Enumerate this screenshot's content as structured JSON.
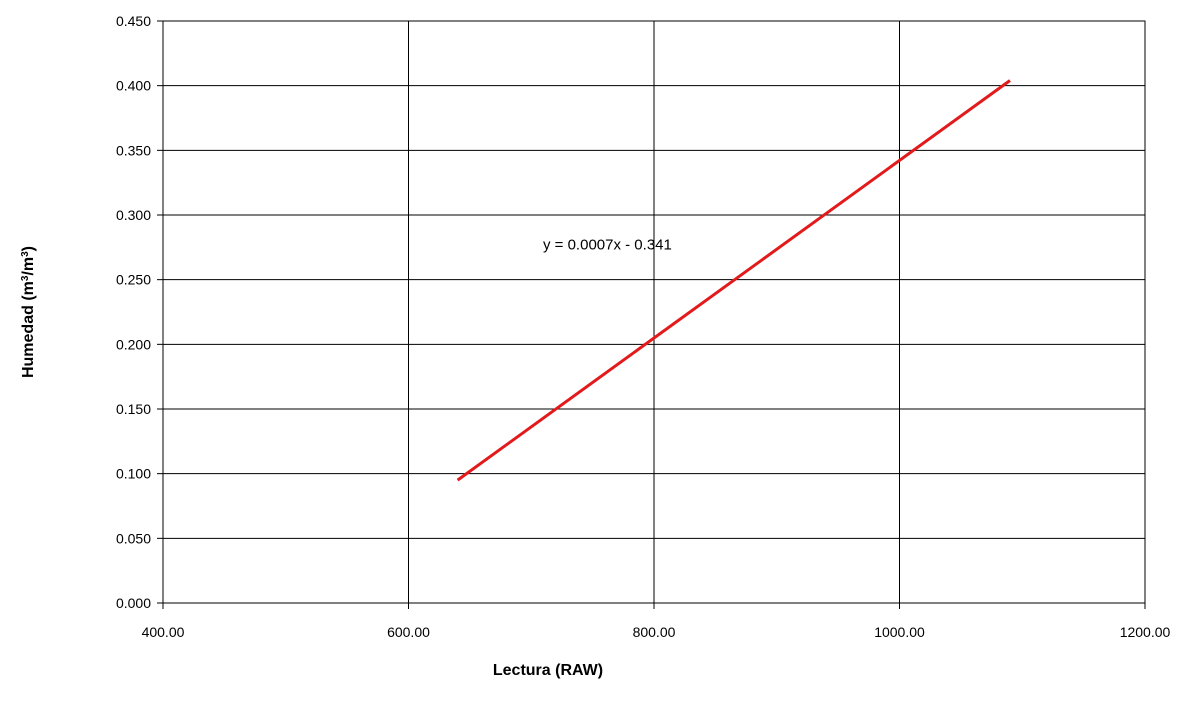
{
  "chart_data": {
    "type": "line",
    "xlabel": "Lectura  (RAW)",
    "ylabel_main": "Humedad (m",
    "ylabel_sup1": "3",
    "ylabel_mid": "/m",
    "ylabel_sup2": "3",
    "ylabel_end": ")",
    "xlim": [
      400,
      1200
    ],
    "ylim": [
      0,
      0.45
    ],
    "x_ticks": [
      400,
      600,
      800,
      1000,
      1200
    ],
    "x_tick_labels": [
      "400.00",
      "600.00",
      "800.00",
      "1000.00",
      "1200.00"
    ],
    "y_ticks": [
      0,
      0.05,
      0.1,
      0.15,
      0.2,
      0.25,
      0.3,
      0.35,
      0.4,
      0.45
    ],
    "y_tick_labels": [
      "0.000",
      "0.050",
      "0.100",
      "0.150",
      "0.200",
      "0.250",
      "0.300",
      "0.350",
      "0.400",
      "0.450"
    ],
    "grid": true,
    "series": [
      {
        "color": "#e31a1c",
        "x": [
          640,
          1090
        ],
        "y": [
          0.095,
          0.404
        ]
      }
    ],
    "annotation": {
      "text": "y = 0.0007x - 0.341",
      "x": 780,
      "y": 0.277
    }
  }
}
